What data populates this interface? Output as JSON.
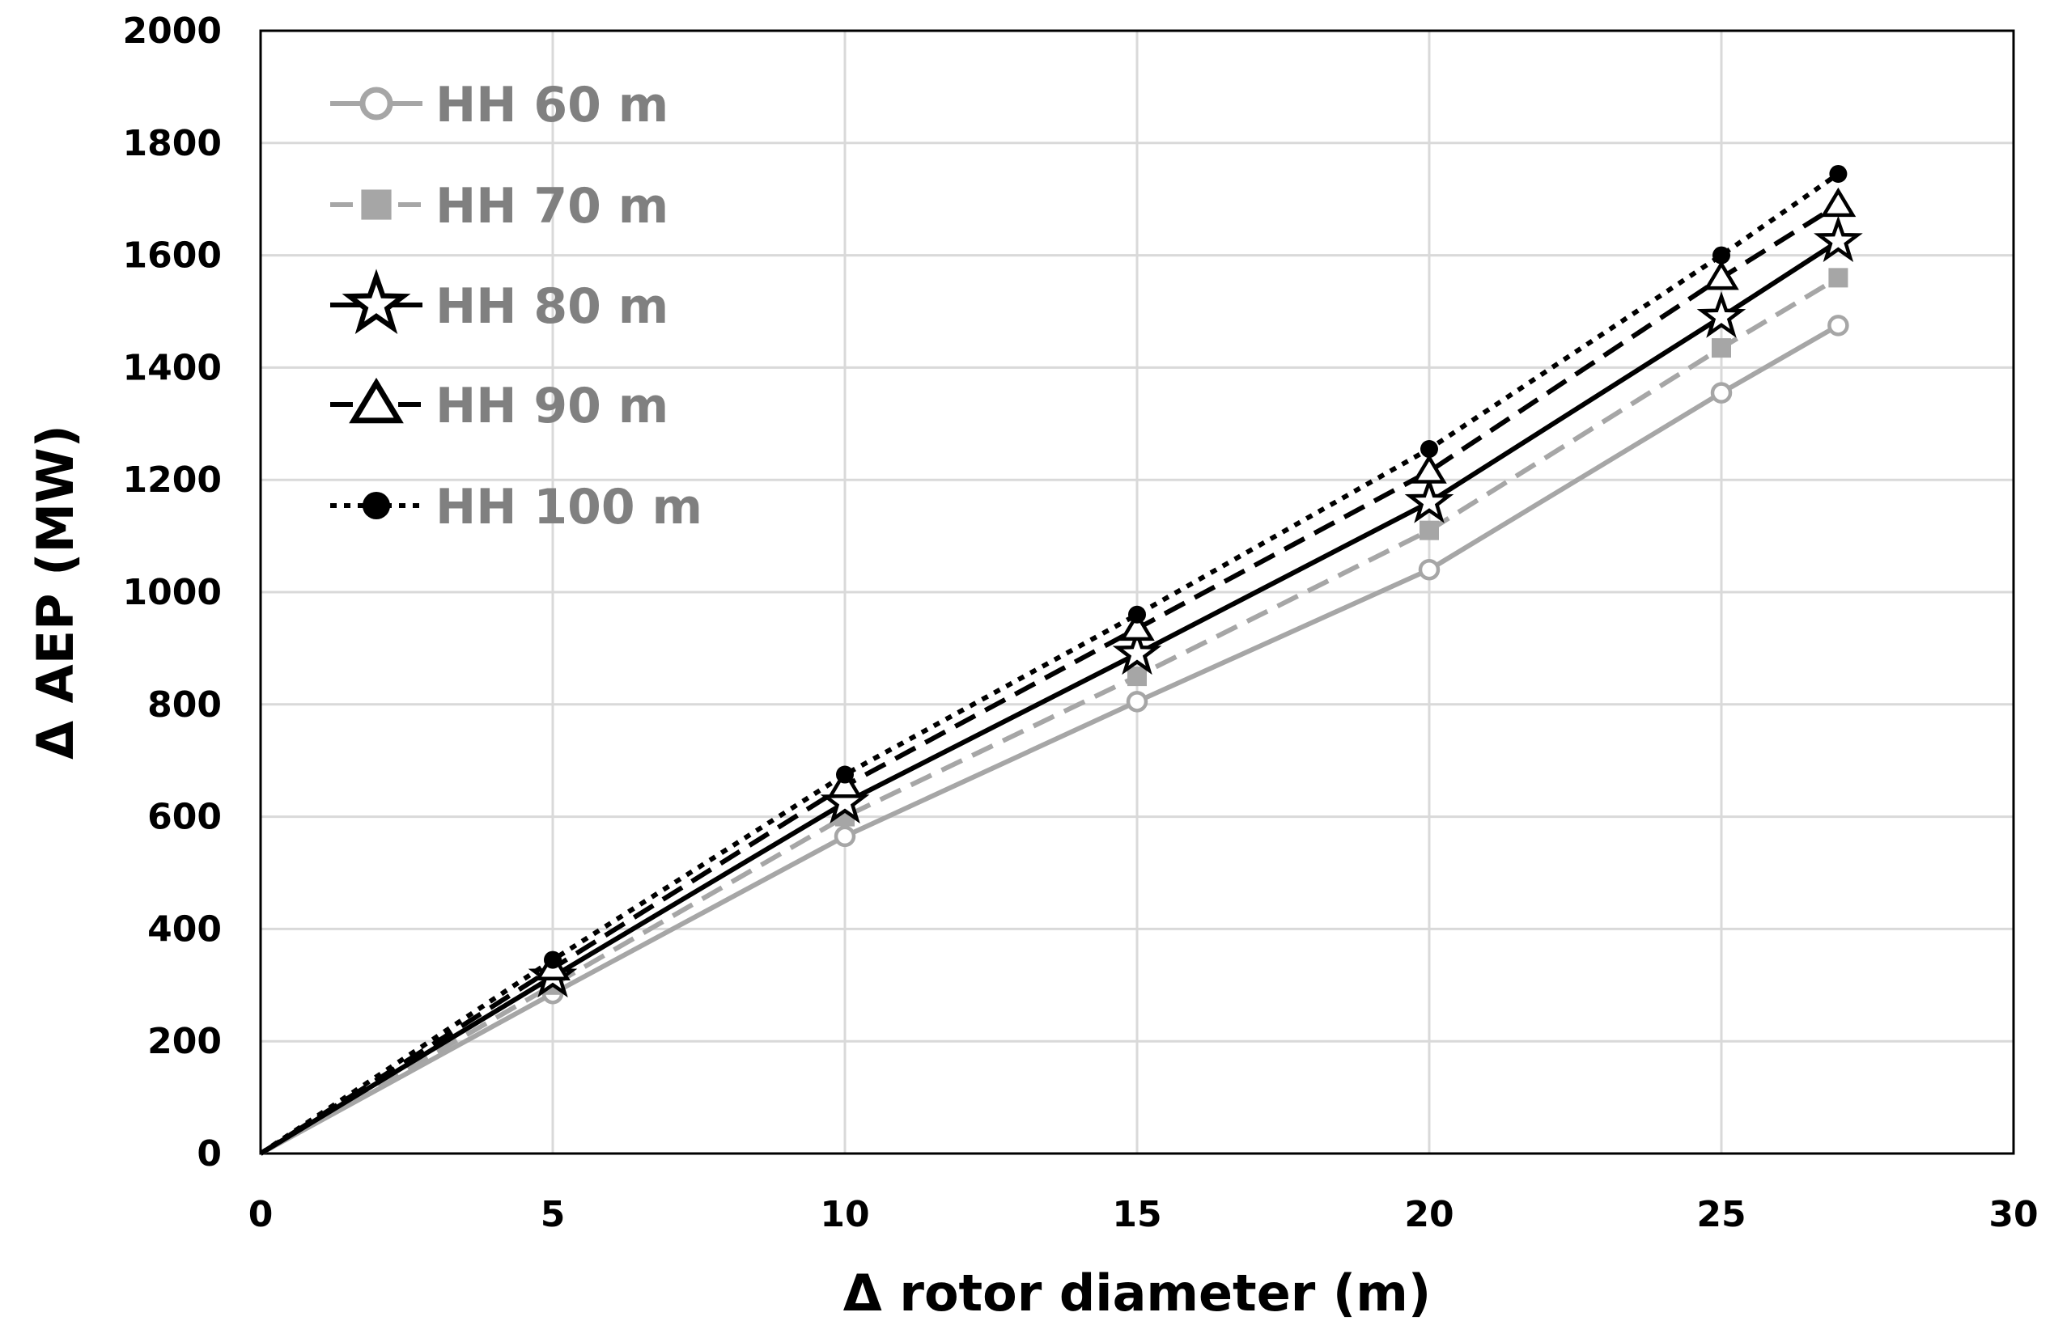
{
  "chart_data": {
    "type": "line",
    "xlabel": "Δ rotor diameter (m)",
    "ylabel": "Δ AEP (MW)",
    "xlim": [
      0,
      30
    ],
    "ylim": [
      0,
      2000
    ],
    "xticks": [
      "0",
      "5",
      "10",
      "15",
      "20",
      "25",
      "30"
    ],
    "yticks": [
      "0",
      "200",
      "400",
      "600",
      "800",
      "1000",
      "1200",
      "1400",
      "1600",
      "1800",
      "2000"
    ],
    "grid": true,
    "legend_position": "top-left",
    "x": [
      0,
      5,
      10,
      15,
      20,
      25,
      27
    ],
    "series": [
      {
        "name": "HH 60 m",
        "values": [
          0,
          285,
          565,
          805,
          1040,
          1355,
          1475
        ],
        "color": "#a6a6a6",
        "dash": "solid",
        "marker": "open-circle"
      },
      {
        "name": "HH 70 m",
        "values": [
          0,
          300,
          600,
          850,
          1110,
          1435,
          1560
        ],
        "color": "#a6a6a6",
        "dash": "dashed",
        "marker": "filled-square"
      },
      {
        "name": "HH 80 m",
        "values": [
          0,
          315,
          625,
          890,
          1160,
          1490,
          1625
        ],
        "color": "#000000",
        "dash": "solid",
        "marker": "open-star"
      },
      {
        "name": "HH 90 m",
        "values": [
          0,
          330,
          655,
          935,
          1215,
          1560,
          1690
        ],
        "color": "#000000",
        "dash": "dashed",
        "marker": "open-triangle"
      },
      {
        "name": "HH 100 m",
        "values": [
          0,
          345,
          675,
          960,
          1255,
          1600,
          1745
        ],
        "color": "#000000",
        "dash": "dotted",
        "marker": "filled-circle"
      }
    ]
  }
}
